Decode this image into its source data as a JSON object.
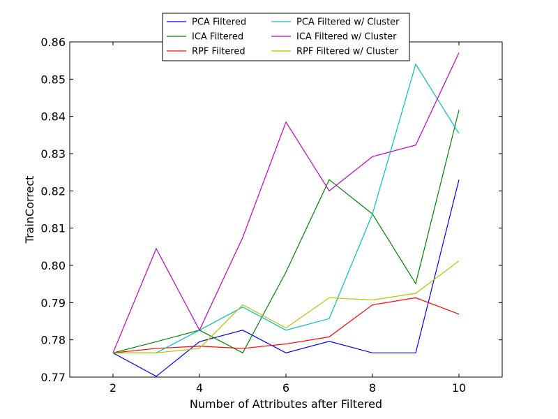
{
  "chart_data": {
    "type": "line",
    "xlabel": "Number of Attributes after Filtered",
    "ylabel": "TrainCorrect",
    "xlim": [
      1,
      11
    ],
    "ylim": [
      0.77,
      0.86
    ],
    "xticks": [
      2,
      4,
      6,
      8,
      10
    ],
    "xtick_labels": [
      "2",
      "4",
      "6",
      "8",
      "10"
    ],
    "yticks": [
      0.77,
      0.78,
      0.79,
      0.8,
      0.81,
      0.82,
      0.83,
      0.84,
      0.85,
      0.86
    ],
    "ytick_labels": [
      "0.77",
      "0.78",
      "0.79",
      "0.80",
      "0.81",
      "0.82",
      "0.83",
      "0.84",
      "0.85",
      "0.86"
    ],
    "grid": false,
    "legend_position": "top-center",
    "x": [
      2,
      3,
      4,
      5,
      6,
      7,
      8,
      9,
      10
    ],
    "series": [
      {
        "name": "PCA Filtered",
        "color": "#0000ff",
        "values": [
          0.7765,
          0.7702,
          0.7795,
          0.7826,
          0.7765,
          0.7796,
          0.7765,
          0.7765,
          0.823
        ]
      },
      {
        "name": "ICA Filtered",
        "color": "#008000",
        "values": [
          0.7765,
          0.7795,
          0.7826,
          0.7765,
          0.7982,
          0.823,
          0.8138,
          0.7951,
          0.8417
        ]
      },
      {
        "name": "RPF Filtered",
        "color": "#ff0000",
        "values": [
          0.7765,
          0.7777,
          0.7783,
          0.7777,
          0.7789,
          0.7808,
          0.7894,
          0.7913,
          0.7869
        ]
      },
      {
        "name": "PCA Filtered w/ Cluster",
        "color": "#00bfbf",
        "values": [
          0.7765,
          0.7765,
          0.7826,
          0.7888,
          0.7826,
          0.7857,
          0.8138,
          0.854,
          0.8354
        ]
      },
      {
        "name": "ICA Filtered w/ Cluster",
        "color": "#bf00bf",
        "values": [
          0.7765,
          0.8045,
          0.7826,
          0.8075,
          0.8385,
          0.82,
          0.8292,
          0.8323,
          0.8571
        ]
      },
      {
        "name": "RPF Filtered w/ Cluster",
        "color": "#bfbf00",
        "values": [
          0.7765,
          0.7765,
          0.7777,
          0.7894,
          0.7832,
          0.7913,
          0.7907,
          0.7925,
          0.8012
        ]
      }
    ]
  }
}
